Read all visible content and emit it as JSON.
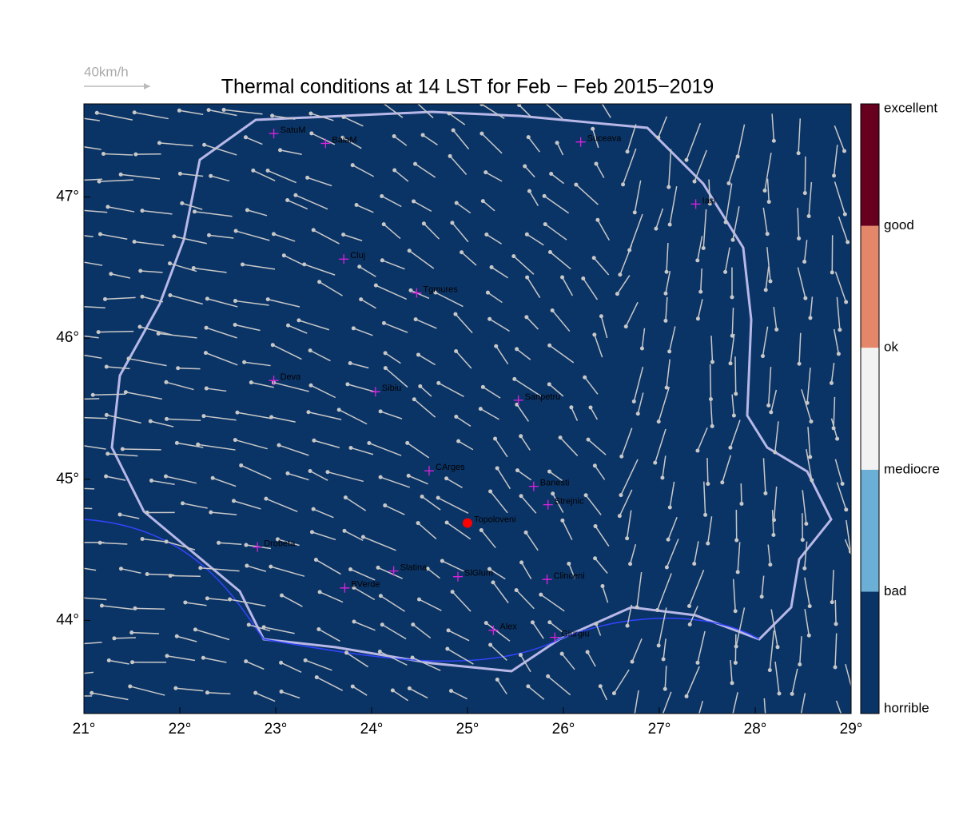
{
  "chart_data": {
    "type": "map",
    "title": "Thermal conditions at 14 LST for Feb − Feb  2015−2019",
    "wind_reference": "40km/h",
    "xlim": [
      21,
      29
    ],
    "ylim": [
      43.34,
      47.66
    ],
    "xticks": [
      {
        "value": 21,
        "label": "21°"
      },
      {
        "value": 22,
        "label": "22°"
      },
      {
        "value": 23,
        "label": "23°"
      },
      {
        "value": 24,
        "label": "24°"
      },
      {
        "value": 25,
        "label": "25°"
      },
      {
        "value": 26,
        "label": "26°"
      },
      {
        "value": 27,
        "label": "27°"
      },
      {
        "value": 28,
        "label": "28°"
      },
      {
        "value": 29,
        "label": "29°"
      }
    ],
    "yticks": [
      {
        "value": 44,
        "label": "44°"
      },
      {
        "value": 45,
        "label": "45°"
      },
      {
        "value": 46,
        "label": "46°"
      },
      {
        "value": 47,
        "label": "47°"
      }
    ],
    "background_color": "#0b3466",
    "colorbar": {
      "labels": [
        "horrible",
        "bad",
        "mediocre",
        "ok",
        "good",
        "excellent"
      ],
      "colors": [
        "#0b3466",
        "#6baed6",
        "#f2f2f2",
        "#e4866a",
        "#67001f"
      ]
    },
    "cities": [
      {
        "name": "SatuM",
        "lon": 22.98,
        "lat": 47.45
      },
      {
        "name": "BaiaM",
        "lon": 23.52,
        "lat": 47.38
      },
      {
        "name": "Suceava",
        "lon": 26.18,
        "lat": 47.39
      },
      {
        "name": "Iasi",
        "lon": 27.38,
        "lat": 46.95
      },
      {
        "name": "Cluj",
        "lon": 23.71,
        "lat": 46.56
      },
      {
        "name": "Tgmures",
        "lon": 24.47,
        "lat": 46.32
      },
      {
        "name": "Deva",
        "lon": 22.98,
        "lat": 45.7
      },
      {
        "name": "Sibiu",
        "lon": 24.04,
        "lat": 45.62
      },
      {
        "name": "Sanpetru",
        "lon": 25.53,
        "lat": 45.56
      },
      {
        "name": "CArges",
        "lon": 24.6,
        "lat": 45.06
      },
      {
        "name": "Banesti",
        "lon": 25.69,
        "lat": 44.95
      },
      {
        "name": "Strejnic",
        "lon": 25.84,
        "lat": 44.82
      },
      {
        "name": "Topoloveni",
        "lon": 25.0,
        "lat": 44.69,
        "highlight": true
      },
      {
        "name": "Drobeta",
        "lon": 22.81,
        "lat": 44.52
      },
      {
        "name": "Slatina",
        "lon": 24.23,
        "lat": 44.35
      },
      {
        "name": "SlGlum",
        "lon": 24.9,
        "lat": 44.31
      },
      {
        "name": "Clinceni",
        "lon": 25.83,
        "lat": 44.29
      },
      {
        "name": "BVerde",
        "lon": 23.72,
        "lat": 44.23
      },
      {
        "name": "Alex",
        "lon": 25.27,
        "lat": 43.93
      },
      {
        "name": "Giurgiu",
        "lon": 25.91,
        "lat": 43.88
      }
    ]
  }
}
